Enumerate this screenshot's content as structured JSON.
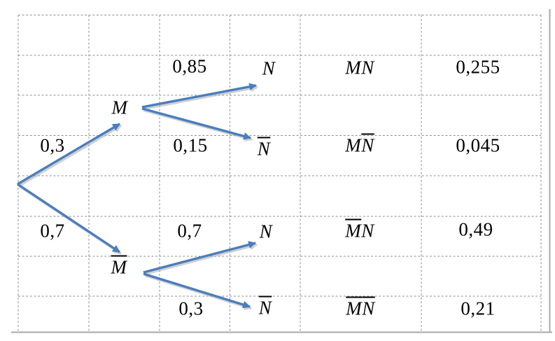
{
  "figure": {
    "kind": "probability-tree-table",
    "colors": {
      "arrow": "#4a7ebc",
      "arrow_shadow": "#a8acb0",
      "grid_dash": "#8f8f8f",
      "border_solid": "#b0b0b0",
      "text": "#000000"
    },
    "tree": {
      "branches": [
        {
          "prob": "0,3",
          "node": "M",
          "children": [
            {
              "prob": "0,85",
              "node": "N",
              "outcome": "MN",
              "outcome_prob": "0,255"
            },
            {
              "prob": "0,15",
              "node": "N̅",
              "outcome": "MN̅",
              "outcome_prob": "0,045"
            }
          ]
        },
        {
          "prob": "0,7",
          "node": "M̅",
          "children": [
            {
              "prob": "0,7",
              "node": "N",
              "outcome": "M̅N",
              "outcome_prob": "0,49"
            },
            {
              "prob": "0,3",
              "node": "N̅",
              "outcome": "M̅N̅",
              "outcome_prob": "0,21"
            }
          ]
        }
      ]
    }
  }
}
